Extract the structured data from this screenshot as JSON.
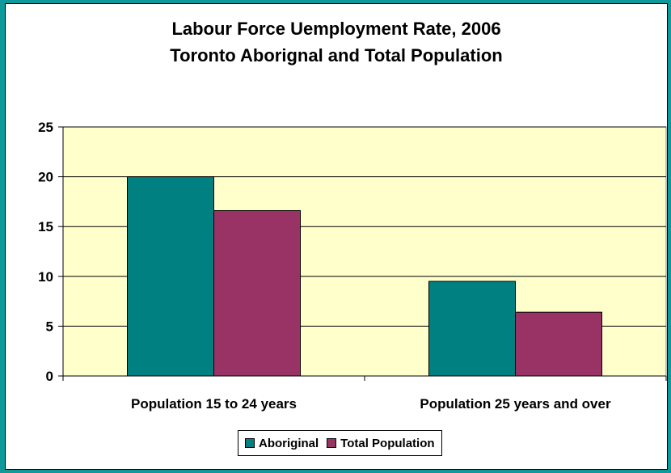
{
  "chart_data": {
    "type": "bar",
    "title": "Labour Force Uemployment Rate, 2006",
    "subtitle": "Toronto Aborignal and Total Population",
    "categories": [
      "Population 15 to 24 years",
      "Population 25 years and over"
    ],
    "series": [
      {
        "name": "Aboriginal",
        "values": [
          20.0,
          9.5
        ],
        "color": "#008080"
      },
      {
        "name": "Total Population",
        "values": [
          16.6,
          6.4
        ],
        "color": "#993366"
      }
    ],
    "ylim": [
      0,
      25
    ],
    "yticks": [
      "0",
      "5",
      "10",
      "15",
      "20",
      "25"
    ],
    "grid": true,
    "legend_position": "bottom",
    "plot_background": "#ffffcc"
  }
}
